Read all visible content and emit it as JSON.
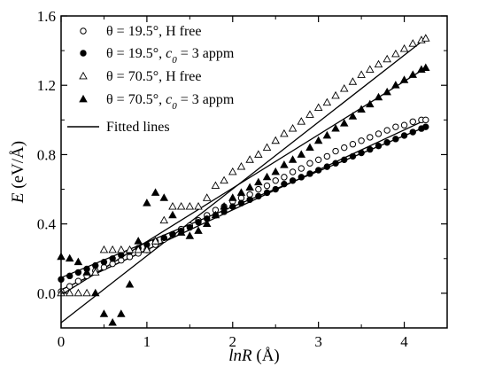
{
  "chart_data": {
    "type": "scatter",
    "title": "",
    "xlabel": {
      "italic": "lnR",
      "rest": " (Å)"
    },
    "ylabel": {
      "italic": "E",
      "rest": " (eV/Å)"
    },
    "xlim": [
      0,
      4.5
    ],
    "ylim": [
      -0.2,
      1.6
    ],
    "x_ticks": [
      0,
      1,
      2,
      3,
      4
    ],
    "x_tick_labels": [
      "0",
      "1",
      "2",
      "3",
      "4"
    ],
    "y_ticks": [
      0.0,
      0.4,
      0.8,
      1.2,
      1.6
    ],
    "y_tick_labels": [
      "0.0",
      "0.4",
      "0.8",
      "1.2",
      "1.6"
    ],
    "grid": false,
    "legend_position": "top-left",
    "legend": [
      {
        "marker": "circle-open",
        "parts": [
          [
            "θ = 19.5°, H free",
            false
          ]
        ]
      },
      {
        "marker": "circle-filled",
        "parts": [
          [
            "θ = 19.5°, ",
            false
          ],
          [
            "c",
            true
          ],
          [
            "0",
            "sub"
          ],
          [
            " = 3 appm",
            false
          ]
        ]
      },
      {
        "marker": "triangle-open",
        "parts": [
          [
            "θ = 70.5°, H free",
            false
          ]
        ]
      },
      {
        "marker": "triangle-filled",
        "parts": [
          [
            "θ = 70.5°, ",
            false
          ],
          [
            "c",
            true
          ],
          [
            "0",
            "sub"
          ],
          [
            " = 3 appm",
            false
          ]
        ]
      },
      {
        "marker": "line",
        "parts": [
          [
            "Fitted lines",
            false
          ]
        ]
      }
    ],
    "series": [
      {
        "marker": "circle-open",
        "x": [
          0.0,
          0.1,
          0.2,
          0.3,
          0.4,
          0.5,
          0.6,
          0.7,
          0.8,
          0.9,
          1.0,
          1.1,
          1.2,
          1.3,
          1.4,
          1.5,
          1.6,
          1.7,
          1.8,
          1.9,
          2.0,
          2.1,
          2.2,
          2.3,
          2.4,
          2.5,
          2.6,
          2.7,
          2.8,
          2.9,
          3.0,
          3.1,
          3.2,
          3.3,
          3.4,
          3.5,
          3.6,
          3.7,
          3.8,
          3.9,
          4.0,
          4.1,
          4.2,
          4.25
        ],
        "y": [
          0.01,
          0.04,
          0.07,
          0.1,
          0.13,
          0.15,
          0.17,
          0.19,
          0.21,
          0.23,
          0.25,
          0.28,
          0.31,
          0.34,
          0.37,
          0.39,
          0.42,
          0.45,
          0.48,
          0.5,
          0.53,
          0.55,
          0.57,
          0.6,
          0.62,
          0.65,
          0.67,
          0.7,
          0.72,
          0.75,
          0.77,
          0.79,
          0.82,
          0.84,
          0.86,
          0.88,
          0.9,
          0.92,
          0.94,
          0.96,
          0.97,
          0.99,
          1.0,
          1.0
        ]
      },
      {
        "marker": "circle-filled",
        "x": [
          0.0,
          0.1,
          0.2,
          0.3,
          0.4,
          0.5,
          0.6,
          0.7,
          0.8,
          0.9,
          1.0,
          1.1,
          1.2,
          1.3,
          1.4,
          1.5,
          1.6,
          1.7,
          1.8,
          1.9,
          2.0,
          2.1,
          2.2,
          2.3,
          2.4,
          2.5,
          2.6,
          2.7,
          2.8,
          2.9,
          3.0,
          3.1,
          3.2,
          3.3,
          3.4,
          3.5,
          3.6,
          3.7,
          3.8,
          3.9,
          4.0,
          4.1,
          4.2,
          4.25
        ],
        "y": [
          0.08,
          0.1,
          0.12,
          0.14,
          0.16,
          0.18,
          0.2,
          0.22,
          0.24,
          0.26,
          0.28,
          0.3,
          0.32,
          0.34,
          0.36,
          0.38,
          0.41,
          0.43,
          0.45,
          0.47,
          0.5,
          0.52,
          0.54,
          0.56,
          0.58,
          0.6,
          0.63,
          0.65,
          0.67,
          0.69,
          0.71,
          0.73,
          0.75,
          0.77,
          0.79,
          0.81,
          0.83,
          0.85,
          0.87,
          0.89,
          0.91,
          0.93,
          0.95,
          0.96
        ]
      },
      {
        "marker": "triangle-open",
        "x": [
          0.0,
          0.1,
          0.2,
          0.3,
          0.4,
          0.5,
          0.6,
          0.7,
          0.8,
          0.9,
          1.0,
          1.1,
          1.2,
          1.3,
          1.4,
          1.5,
          1.6,
          1.7,
          1.8,
          1.9,
          2.0,
          2.1,
          2.2,
          2.3,
          2.4,
          2.5,
          2.6,
          2.7,
          2.8,
          2.9,
          3.0,
          3.1,
          3.2,
          3.3,
          3.4,
          3.5,
          3.6,
          3.7,
          3.8,
          3.9,
          4.0,
          4.1,
          4.2,
          4.25
        ],
        "y": [
          0.0,
          0.0,
          0.0,
          0.0,
          0.12,
          0.25,
          0.25,
          0.25,
          0.25,
          0.25,
          0.25,
          0.3,
          0.42,
          0.5,
          0.5,
          0.5,
          0.5,
          0.55,
          0.62,
          0.65,
          0.7,
          0.73,
          0.77,
          0.8,
          0.84,
          0.88,
          0.92,
          0.95,
          0.99,
          1.03,
          1.07,
          1.1,
          1.14,
          1.18,
          1.22,
          1.26,
          1.29,
          1.32,
          1.35,
          1.38,
          1.41,
          1.44,
          1.46,
          1.47
        ]
      },
      {
        "marker": "triangle-filled",
        "x": [
          0.0,
          0.1,
          0.2,
          0.3,
          0.4,
          0.5,
          0.6,
          0.7,
          0.8,
          0.9,
          1.0,
          1.1,
          1.2,
          1.3,
          1.4,
          1.5,
          1.6,
          1.7,
          1.8,
          1.9,
          2.0,
          2.1,
          2.2,
          2.3,
          2.4,
          2.5,
          2.6,
          2.7,
          2.8,
          2.9,
          3.0,
          3.1,
          3.2,
          3.3,
          3.4,
          3.5,
          3.6,
          3.7,
          3.8,
          3.9,
          4.0,
          4.1,
          4.2,
          4.25
        ],
        "y": [
          0.21,
          0.2,
          0.18,
          0.12,
          0.0,
          -0.12,
          -0.17,
          -0.12,
          0.05,
          0.3,
          0.52,
          0.58,
          0.55,
          0.45,
          0.35,
          0.33,
          0.36,
          0.4,
          0.45,
          0.5,
          0.55,
          0.58,
          0.61,
          0.64,
          0.67,
          0.7,
          0.74,
          0.77,
          0.8,
          0.84,
          0.88,
          0.91,
          0.95,
          0.98,
          1.02,
          1.06,
          1.09,
          1.13,
          1.16,
          1.2,
          1.23,
          1.26,
          1.29,
          1.3
        ]
      }
    ],
    "fitted_lines": [
      {
        "x": [
          0.0,
          4.25
        ],
        "y": [
          0.02,
          1.0
        ]
      },
      {
        "x": [
          0.0,
          4.25
        ],
        "y": [
          0.09,
          0.96
        ]
      },
      {
        "x": [
          0.0,
          4.25
        ],
        "y": [
          -0.17,
          1.47
        ]
      },
      {
        "x": [
          0.0,
          4.25
        ],
        "y": [
          -0.01,
          1.3
        ]
      }
    ]
  }
}
